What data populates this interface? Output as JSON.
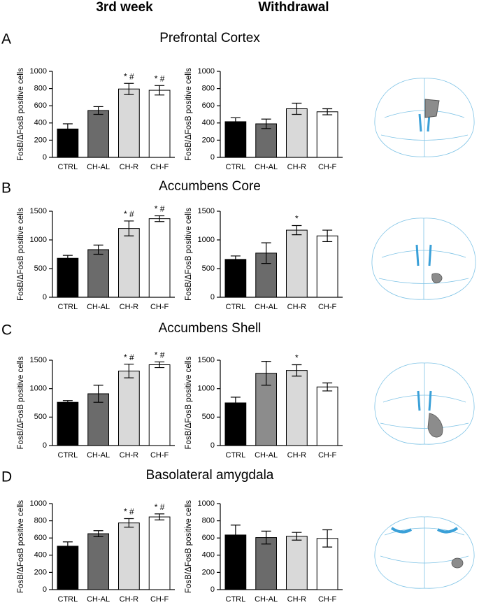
{
  "columns": [
    "3rd week",
    "Withdrawal"
  ],
  "panels": [
    {
      "letter": "A",
      "title": "Prefrontal Cortex"
    },
    {
      "letter": "B",
      "title": "Accumbens Core"
    },
    {
      "letter": "C",
      "title": "Accumbens Shell"
    },
    {
      "letter": "D",
      "title": "Basolateral amygdala"
    }
  ],
  "chart_data": [
    {
      "type": "bar",
      "ylabel": "FosB/ΔFosB positive cells",
      "categories": [
        "CTRL",
        "CH-AL",
        "CH-R",
        "CH-F"
      ],
      "values": [
        330,
        545,
        795,
        780
      ],
      "errors": [
        60,
        45,
        65,
        55
      ],
      "markers": [
        null,
        null,
        "* #",
        "* #"
      ],
      "colors": [
        "#000000",
        "#6b6b6b",
        "#d9d9d9",
        "#ffffff"
      ],
      "ylim": [
        0,
        1000
      ],
      "yticks": [
        0,
        200,
        400,
        600,
        800,
        1000
      ]
    },
    {
      "type": "bar",
      "ylabel": "FosB/ΔFosB positive cells",
      "categories": [
        "CTRL",
        "CH-AL",
        "CH-R",
        "CH-F"
      ],
      "values": [
        415,
        390,
        565,
        530
      ],
      "errors": [
        45,
        55,
        65,
        35
      ],
      "markers": [
        null,
        null,
        null,
        null
      ],
      "colors": [
        "#000000",
        "#6b6b6b",
        "#d9d9d9",
        "#ffffff"
      ],
      "ylim": [
        0,
        1000
      ],
      "yticks": [
        0,
        200,
        400,
        600,
        800,
        1000
      ]
    },
    {
      "type": "bar",
      "ylabel": "FosB/ΔFosB positive cells",
      "categories": [
        "CTRL",
        "CH-AL",
        "CH-R",
        "CH-F"
      ],
      "values": [
        680,
        830,
        1200,
        1370
      ],
      "errors": [
        50,
        80,
        130,
        50
      ],
      "markers": [
        null,
        null,
        "* #",
        "* #"
      ],
      "colors": [
        "#000000",
        "#6b6b6b",
        "#d9d9d9",
        "#ffffff"
      ],
      "ylim": [
        0,
        1500
      ],
      "yticks": [
        0,
        500,
        1000,
        1500
      ]
    },
    {
      "type": "bar",
      "ylabel": "FosB/ΔFosB positive cells",
      "categories": [
        "CTRL",
        "CH-AL",
        "CH-R",
        "CH-F"
      ],
      "values": [
        660,
        770,
        1170,
        1070
      ],
      "errors": [
        60,
        180,
        80,
        100
      ],
      "markers": [
        null,
        null,
        "*",
        null
      ],
      "colors": [
        "#000000",
        "#6b6b6b",
        "#d9d9d9",
        "#ffffff"
      ],
      "ylim": [
        0,
        1500
      ],
      "yticks": [
        0,
        500,
        1000,
        1500
      ]
    },
    {
      "type": "bar",
      "ylabel": "FosB/ΔFosB positive cells",
      "categories": [
        "CTRL",
        "CH-AL",
        "CH-R",
        "CH-F"
      ],
      "values": [
        760,
        910,
        1310,
        1420
      ],
      "errors": [
        30,
        150,
        120,
        50
      ],
      "markers": [
        null,
        null,
        "* #",
        "* #"
      ],
      "colors": [
        "#000000",
        "#6b6b6b",
        "#d9d9d9",
        "#ffffff"
      ],
      "ylim": [
        0,
        1500
      ],
      "yticks": [
        0,
        500,
        1000,
        1500
      ]
    },
    {
      "type": "bar",
      "ylabel": "FosB/ΔFosB positive cells",
      "categories": [
        "CTRL",
        "CH-AL",
        "CH-R",
        "CH-F"
      ],
      "values": [
        750,
        1270,
        1320,
        1030
      ],
      "errors": [
        100,
        210,
        100,
        70
      ],
      "markers": [
        null,
        null,
        "*",
        null
      ],
      "colors": [
        "#000000",
        "#8c8c8c",
        "#d9d9d9",
        "#ffffff"
      ],
      "ylim": [
        0,
        1500
      ],
      "yticks": [
        0,
        500,
        1000,
        1500
      ]
    },
    {
      "type": "bar",
      "ylabel": "FosB/ΔFosB positive cells",
      "categories": [
        "CTRL",
        "CH-AL",
        "CH-R",
        "CH-F"
      ],
      "values": [
        505,
        650,
        775,
        845
      ],
      "errors": [
        50,
        35,
        50,
        35
      ],
      "markers": [
        null,
        null,
        "* #",
        "* #"
      ],
      "colors": [
        "#000000",
        "#6b6b6b",
        "#d9d9d9",
        "#ffffff"
      ],
      "ylim": [
        0,
        1000
      ],
      "yticks": [
        0,
        200,
        400,
        600,
        800,
        1000
      ]
    },
    {
      "type": "bar",
      "ylabel": "FosB/ΔFosB positive cells",
      "categories": [
        "CTRL",
        "CH-AL",
        "CH-R",
        "CH-F"
      ],
      "values": [
        635,
        605,
        620,
        595
      ],
      "errors": [
        115,
        75,
        45,
        100
      ],
      "markers": [
        null,
        null,
        null,
        null
      ],
      "colors": [
        "#000000",
        "#6b6b6b",
        "#d9d9d9",
        "#ffffff"
      ],
      "ylim": [
        0,
        1000
      ],
      "yticks": [
        0,
        200,
        400,
        600,
        800,
        1000
      ]
    }
  ]
}
